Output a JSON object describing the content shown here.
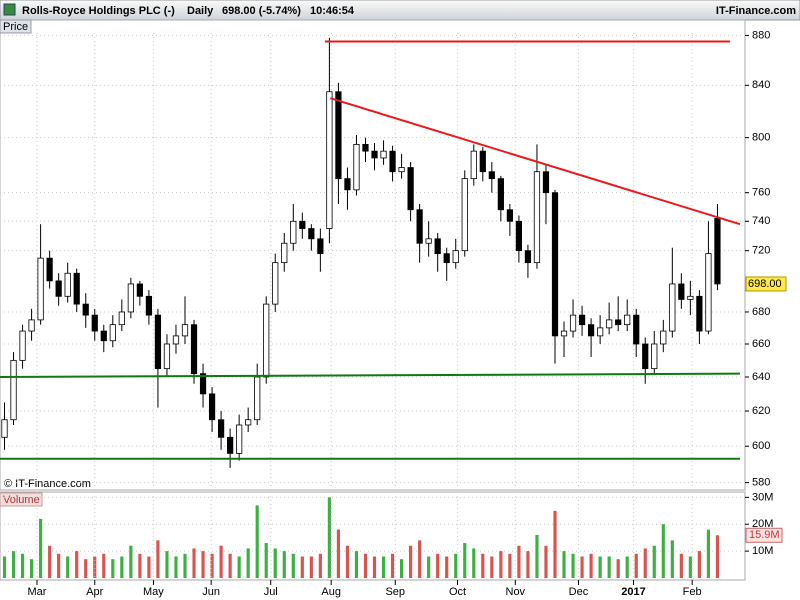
{
  "chart_data": [
    {
      "type": "candlestick",
      "title": "Rolls-Royce Holdings PLC (-)",
      "interval": "Daily",
      "last": "698.00 (-5.74%)",
      "time": "10:46:54",
      "source": "IT-Finance.com",
      "panel_label": "Price",
      "copyright": "© IT-Finance.com",
      "log_scale": true,
      "grid": true,
      "up_color": "#ffffff",
      "down_color": "#000000",
      "xlim": [
        -0.5,
        81.5
      ],
      "ylim": [
        576,
        882
      ],
      "yticks": [
        580,
        600,
        620,
        640,
        660,
        680,
        720,
        740,
        760,
        800,
        840,
        880
      ],
      "last_label": {
        "value": 698,
        "label": "698.00"
      },
      "ohlc": [
        [
          605,
          625,
          598,
          615
        ],
        [
          615,
          655,
          612,
          650
        ],
        [
          650,
          672,
          645,
          668
        ],
        [
          668,
          682,
          662,
          675
        ],
        [
          675,
          738,
          672,
          715
        ],
        [
          715,
          720,
          695,
          700
        ],
        [
          700,
          705,
          684,
          690
        ],
        [
          690,
          712,
          686,
          705
        ],
        [
          705,
          708,
          680,
          685
        ],
        [
          685,
          692,
          670,
          678
        ],
        [
          678,
          682,
          662,
          668
        ],
        [
          668,
          672,
          655,
          662
        ],
        [
          662,
          678,
          658,
          672
        ],
        [
          672,
          688,
          668,
          680
        ],
        [
          680,
          702,
          676,
          698
        ],
        [
          698,
          700,
          684,
          690
        ],
        [
          690,
          694,
          672,
          678
        ],
        [
          678,
          682,
          622,
          645
        ],
        [
          645,
          666,
          640,
          660
        ],
        [
          660,
          672,
          654,
          665
        ],
        [
          665,
          690,
          660,
          672
        ],
        [
          672,
          675,
          636,
          642
        ],
        [
          642,
          648,
          622,
          630
        ],
        [
          630,
          634,
          608,
          615
        ],
        [
          615,
          620,
          598,
          605
        ],
        [
          605,
          610,
          588,
          596
        ],
        [
          596,
          618,
          592,
          612
        ],
        [
          612,
          622,
          608,
          615
        ],
        [
          615,
          648,
          612,
          640
        ],
        [
          640,
          690,
          636,
          685
        ],
        [
          685,
          718,
          680,
          712
        ],
        [
          712,
          732,
          706,
          725
        ],
        [
          725,
          752,
          720,
          740
        ],
        [
          740,
          746,
          728,
          735
        ],
        [
          735,
          738,
          720,
          728
        ],
        [
          728,
          735,
          706,
          718
        ],
        [
          735,
          878,
          725,
          835
        ],
        [
          835,
          842,
          752,
          770
        ],
        [
          770,
          778,
          748,
          762
        ],
        [
          762,
          802,
          758,
          795
        ],
        [
          795,
          800,
          782,
          790
        ],
        [
          790,
          796,
          776,
          785
        ],
        [
          785,
          798,
          780,
          790
        ],
        [
          790,
          794,
          768,
          775
        ],
        [
          775,
          788,
          770,
          778
        ],
        [
          778,
          782,
          740,
          748
        ],
        [
          748,
          752,
          712,
          725
        ],
        [
          725,
          740,
          716,
          728
        ],
        [
          728,
          732,
          706,
          718
        ],
        [
          718,
          722,
          700,
          712
        ],
        [
          712,
          728,
          708,
          720
        ],
        [
          720,
          776,
          716,
          770
        ],
        [
          770,
          795,
          765,
          790
        ],
        [
          790,
          793,
          768,
          775
        ],
        [
          775,
          782,
          760,
          770
        ],
        [
          770,
          772,
          740,
          748
        ],
        [
          748,
          752,
          730,
          740
        ],
        [
          740,
          744,
          712,
          720
        ],
        [
          720,
          724,
          702,
          712
        ],
        [
          712,
          795,
          708,
          775
        ],
        [
          775,
          780,
          738,
          760
        ],
        [
          760,
          762,
          648,
          665
        ],
        [
          665,
          674,
          652,
          668
        ],
        [
          668,
          688,
          664,
          678
        ],
        [
          678,
          684,
          665,
          672
        ],
        [
          672,
          676,
          652,
          665
        ],
        [
          665,
          678,
          660,
          670
        ],
        [
          670,
          686,
          666,
          675
        ],
        [
          675,
          690,
          668,
          672
        ],
        [
          672,
          688,
          668,
          678
        ],
        [
          678,
          682,
          652,
          660
        ],
        [
          660,
          664,
          636,
          645
        ],
        [
          645,
          668,
          642,
          660
        ],
        [
          660,
          675,
          655,
          668
        ],
        [
          668,
          722,
          664,
          698
        ],
        [
          698,
          705,
          682,
          688
        ],
        [
          688,
          700,
          678,
          690
        ],
        [
          690,
          694,
          660,
          668
        ],
        [
          668,
          740,
          666,
          718
        ],
        [
          742,
          752,
          694,
          698
        ]
      ],
      "lines": [
        {
          "color": "#e8191d",
          "x": [
            35.5,
            80.4
          ],
          "values": [
            875,
            875
          ]
        },
        {
          "color": "#e8191d",
          "x": [
            36.1,
            81.5
          ],
          "values": [
            830,
            738
          ]
        },
        {
          "color": "#0f7a0f",
          "x": [
            -0.5,
            81.5
          ],
          "values": [
            640,
            642
          ]
        },
        {
          "color": "#0f7a0f",
          "x": [
            -0.5,
            81.5
          ],
          "values": [
            593,
            593
          ]
        }
      ]
    },
    {
      "type": "volume",
      "panel_label": "Volume",
      "up_color": "#3cb043",
      "down_color": "#d9534f",
      "xlim": [
        -0.5,
        81.5
      ],
      "ylim": [
        0,
        32
      ],
      "yticks": [
        {
          "value": 30,
          "label": "30M"
        },
        {
          "value": 20,
          "label": "20M"
        },
        {
          "value": 10,
          "label": "10M"
        }
      ],
      "last_label": {
        "value": 15.9,
        "label": "15.9M"
      },
      "values": [
        8,
        10,
        9,
        7,
        22,
        12,
        9,
        8,
        10,
        7,
        8,
        9,
        7,
        8,
        12,
        9,
        8,
        14,
        10,
        8,
        9,
        11,
        10,
        9,
        12,
        9,
        8,
        11,
        27,
        13,
        11,
        10,
        9,
        8,
        8,
        9,
        30,
        18,
        12,
        10,
        9,
        8,
        8,
        9,
        7,
        12,
        14,
        8,
        9,
        8,
        9,
        13,
        11,
        9,
        8,
        10,
        9,
        12,
        10,
        16,
        12,
        25,
        10,
        9,
        8,
        9,
        8,
        8,
        7,
        8,
        9,
        11,
        12,
        20,
        14,
        9,
        8,
        10,
        18,
        15.9
      ],
      "xticks": [
        {
          "value": 3.6,
          "label": "Mar"
        },
        {
          "value": 10.0,
          "label": "Apr"
        },
        {
          "value": 16.5,
          "label": "May"
        },
        {
          "value": 22.9,
          "label": "Jun"
        },
        {
          "value": 29.5,
          "label": "Jul"
        },
        {
          "value": 36.2,
          "label": "Aug"
        },
        {
          "value": 43.3,
          "label": "Sep"
        },
        {
          "value": 50.2,
          "label": "Oct"
        },
        {
          "value": 56.6,
          "label": "Nov"
        },
        {
          "value": 63.6,
          "label": "Dec"
        },
        {
          "value": 69.7,
          "label": "2017"
        },
        {
          "value": 76.2,
          "label": "Feb"
        }
      ]
    }
  ]
}
